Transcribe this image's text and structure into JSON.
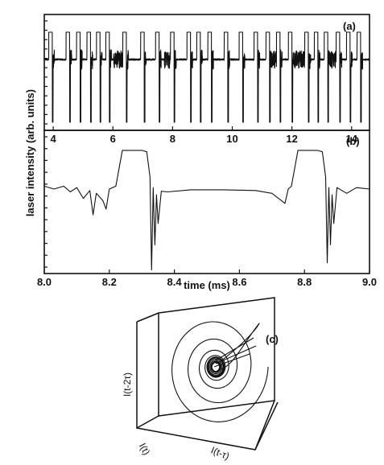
{
  "chart_data": [
    {
      "panel": "(a)",
      "type": "line",
      "x_range": [
        3.7,
        14.6
      ],
      "x_ticks": [
        4,
        6,
        8,
        10,
        12,
        14
      ],
      "x_tick_labels": [
        "4",
        "6",
        "8",
        "10",
        "12",
        "14"
      ],
      "xlabel": "",
      "ylabel": "laser intensity (arb. units)",
      "ylim": [
        -1,
        1
      ],
      "pulse_times": [
        3.92,
        4.5,
        4.85,
        5.2,
        5.52,
        5.83,
        6.4,
        7.0,
        7.5,
        8.0,
        8.55,
        8.88,
        9.25,
        9.8,
        10.3,
        10.8,
        11.2,
        11.55,
        11.95,
        12.5,
        12.82,
        13.15,
        13.55,
        13.9,
        14.25
      ],
      "noisy_bursts": [
        6.2,
        7.9,
        11.35,
        12.1,
        12.45,
        13.35
      ],
      "grid": false
    },
    {
      "panel": "(b)",
      "type": "line",
      "x_range": [
        8.0,
        9.0
      ],
      "x_ticks": [
        8.0,
        8.2,
        8.4,
        8.6,
        8.8,
        9.0
      ],
      "x_tick_labels": [
        "8.0",
        "8.2",
        "8.4",
        "8.6",
        "8.8",
        "9.0"
      ],
      "xlabel": "time (ms)",
      "ylabel": "laser intensity (arb. units)",
      "ylim": [
        -1,
        1
      ],
      "points": [
        [
          8.0,
          0.22
        ],
        [
          8.03,
          0.18
        ],
        [
          8.06,
          0.22
        ],
        [
          8.08,
          0.14
        ],
        [
          8.1,
          0.2
        ],
        [
          8.12,
          0.05
        ],
        [
          8.14,
          0.16
        ],
        [
          8.15,
          -0.18
        ],
        [
          8.16,
          0.12
        ],
        [
          8.18,
          0.02
        ],
        [
          8.19,
          -0.1
        ],
        [
          8.2,
          0.18
        ],
        [
          8.22,
          0.22
        ],
        [
          8.24,
          0.72
        ],
        [
          8.3,
          0.72
        ],
        [
          8.315,
          0.7
        ],
        [
          8.325,
          0.35
        ],
        [
          8.33,
          -0.95
        ],
        [
          8.335,
          0.2
        ],
        [
          8.34,
          -0.6
        ],
        [
          8.345,
          0.1
        ],
        [
          8.35,
          -0.3
        ],
        [
          8.36,
          0.15
        ],
        [
          8.38,
          0.14
        ],
        [
          8.45,
          0.17
        ],
        [
          8.55,
          0.17
        ],
        [
          8.65,
          0.16
        ],
        [
          8.7,
          0.12
        ],
        [
          8.72,
          0.05
        ],
        [
          8.74,
          -0.02
        ],
        [
          8.75,
          0.18
        ],
        [
          8.76,
          0.22
        ],
        [
          8.78,
          0.72
        ],
        [
          8.84,
          0.72
        ],
        [
          8.855,
          0.7
        ],
        [
          8.865,
          0.35
        ],
        [
          8.87,
          -0.85
        ],
        [
          8.875,
          0.2
        ],
        [
          8.88,
          -0.6
        ],
        [
          8.885,
          0.1
        ],
        [
          8.89,
          -0.3
        ],
        [
          8.9,
          0.2
        ],
        [
          8.93,
          0.12
        ],
        [
          8.96,
          0.2
        ],
        [
          9.0,
          0.18
        ]
      ],
      "grid": false
    },
    {
      "panel": "(c)",
      "type": "scatter",
      "projection": "3d",
      "axis_labels": [
        "I(t)",
        "I(t-τ)",
        "I(t-2τ)"
      ],
      "description_free": true
    }
  ],
  "panels": {
    "a": {
      "tag": "(a)"
    },
    "b": {
      "tag": "(b)"
    },
    "c": {
      "tag": "(c)"
    }
  },
  "y_axis_title": "laser intensity (arb. units)",
  "x_axis_title": "time (ms)",
  "phase_axes": {
    "x": "I(t)",
    "y": "I(t-τ)",
    "z": "I(t-2τ)"
  }
}
